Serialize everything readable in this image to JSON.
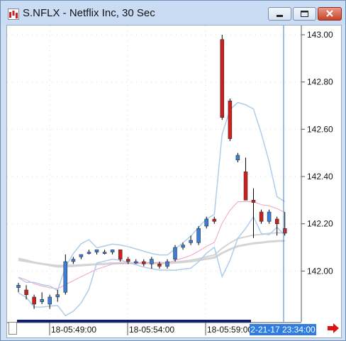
{
  "window": {
    "title": "S.NFLX - Netflix Inc, 30 Sec",
    "app_icon": "chart-app-icon",
    "controls": [
      "minimize-icon",
      "maximize-icon",
      "close-icon"
    ]
  },
  "chart_data": {
    "type": "candlestick",
    "symbol": "S.NFLX",
    "interval": "30 Sec",
    "ylim": [
      141.8,
      143.1
    ],
    "y_ticks": [
      "143.00",
      "142.80",
      "142.60",
      "142.40",
      "142.20",
      "142.00"
    ],
    "x_ticks": [
      "18-05:49:00",
      "18-05:54:00",
      "18-05:59:00"
    ],
    "cursor_time": "2-21-17 23:34:00",
    "colors": {
      "up": "#3a7fd5",
      "down": "#cc2020",
      "bands": "#aecdea",
      "ma_pink": "#f0a0c8",
      "ma_gray": "#d4d4d4"
    },
    "candles": [
      {
        "o": 141.93,
        "h": 141.95,
        "l": 141.91,
        "c": 141.94
      },
      {
        "o": 141.92,
        "h": 141.94,
        "l": 141.88,
        "c": 141.9
      },
      {
        "o": 141.89,
        "h": 141.9,
        "l": 141.84,
        "c": 141.86
      },
      {
        "o": 141.87,
        "h": 141.91,
        "l": 141.86,
        "c": 141.88
      },
      {
        "o": 141.86,
        "h": 141.9,
        "l": 141.84,
        "c": 141.89
      },
      {
        "o": 141.89,
        "h": 141.92,
        "l": 141.87,
        "c": 141.9
      },
      {
        "o": 141.91,
        "h": 142.07,
        "l": 141.9,
        "c": 142.04
      },
      {
        "o": 142.04,
        "h": 142.06,
        "l": 142.03,
        "c": 142.05
      },
      {
        "o": 142.06,
        "h": 142.07,
        "l": 142.05,
        "c": 142.07
      },
      {
        "o": 142.08,
        "h": 142.09,
        "l": 142.07,
        "c": 142.08
      },
      {
        "o": 142.08,
        "h": 142.09,
        "l": 142.07,
        "c": 142.09
      },
      {
        "o": 142.08,
        "h": 142.09,
        "l": 142.07,
        "c": 142.08
      },
      {
        "o": 142.08,
        "h": 142.09,
        "l": 142.07,
        "c": 142.09
      },
      {
        "o": 142.09,
        "h": 142.09,
        "l": 142.04,
        "c": 142.05
      },
      {
        "o": 142.05,
        "h": 142.06,
        "l": 142.03,
        "c": 142.04
      },
      {
        "o": 142.04,
        "h": 142.05,
        "l": 142.03,
        "c": 142.04
      },
      {
        "o": 142.04,
        "h": 142.05,
        "l": 142.02,
        "c": 142.03
      },
      {
        "o": 142.03,
        "h": 142.06,
        "l": 142.01,
        "c": 142.05
      },
      {
        "o": 142.03,
        "h": 142.04,
        "l": 142.01,
        "c": 142.02
      },
      {
        "o": 142.02,
        "h": 142.05,
        "l": 142.01,
        "c": 142.04
      },
      {
        "o": 142.05,
        "h": 142.11,
        "l": 142.04,
        "c": 142.1
      },
      {
        "o": 142.1,
        "h": 142.12,
        "l": 142.09,
        "c": 142.11
      },
      {
        "o": 142.12,
        "h": 142.15,
        "l": 142.11,
        "c": 142.13
      },
      {
        "o": 142.12,
        "h": 142.19,
        "l": 142.11,
        "c": 142.18
      },
      {
        "o": 142.19,
        "h": 142.23,
        "l": 142.18,
        "c": 142.22
      },
      {
        "o": 142.22,
        "h": 142.23,
        "l": 142.2,
        "c": 142.21
      },
      {
        "o": 142.98,
        "h": 143.0,
        "l": 142.64,
        "c": 142.65
      },
      {
        "o": 142.72,
        "h": 142.73,
        "l": 142.55,
        "c": 142.56
      },
      {
        "o": 142.47,
        "h": 142.5,
        "l": 142.46,
        "c": 142.49
      },
      {
        "o": 142.42,
        "h": 142.48,
        "l": 142.3,
        "c": 142.3
      },
      {
        "o": 142.3,
        "h": 142.35,
        "l": 142.14,
        "c": 142.29
      },
      {
        "o": 142.25,
        "h": 142.26,
        "l": 142.2,
        "c": 142.21
      },
      {
        "o": 142.21,
        "h": 142.26,
        "l": 142.2,
        "c": 142.25
      },
      {
        "o": 142.22,
        "h": 142.23,
        "l": 142.15,
        "c": 142.2
      },
      {
        "o": 142.18,
        "h": 142.25,
        "l": 142.15,
        "c": 142.16
      }
    ]
  }
}
